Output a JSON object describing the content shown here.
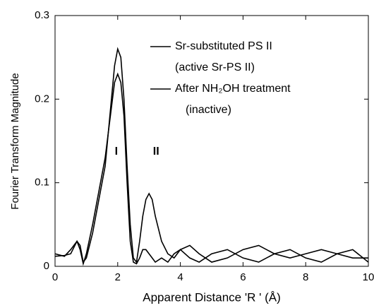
{
  "chart_data": {
    "type": "line",
    "xlabel": "Apparent Distance 'R ' (Å)",
    "ylabel": "Fourier Transform Magnitude",
    "x": [
      0,
      0.3,
      0.5,
      0.7,
      0.8,
      0.9,
      1.0,
      1.2,
      1.4,
      1.6,
      1.8,
      1.9,
      2.0,
      2.1,
      2.2,
      2.3,
      2.4,
      2.5,
      2.6,
      2.7,
      2.8,
      2.9,
      3.0,
      3.1,
      3.2,
      3.4,
      3.6,
      3.8,
      4.0,
      4.3,
      4.6,
      5.0,
      5.5,
      6.0,
      6.5,
      7.0,
      7.5,
      8.0,
      8.5,
      9.0,
      9.5,
      10
    ],
    "series": [
      {
        "name": "Sr-substituted PS II",
        "note": "(active Sr-PS II)",
        "color": "#000000",
        "values": [
          0.012,
          0.013,
          0.015,
          0.03,
          0.025,
          0.005,
          0.01,
          0.04,
          0.08,
          0.12,
          0.2,
          0.24,
          0.26,
          0.25,
          0.2,
          0.12,
          0.05,
          0.01,
          0.005,
          0.03,
          0.06,
          0.08,
          0.087,
          0.08,
          0.06,
          0.03,
          0.015,
          0.01,
          0.02,
          0.01,
          0.005,
          0.015,
          0.02,
          0.01,
          0.005,
          0.015,
          0.02,
          0.01,
          0.005,
          0.015,
          0.02,
          0.005
        ]
      },
      {
        "name": "After NH₂OH treatment",
        "note": "(inactive)",
        "color": "#000000",
        "values": [
          0.015,
          0.012,
          0.02,
          0.03,
          0.02,
          0.003,
          0.015,
          0.05,
          0.09,
          0.13,
          0.19,
          0.22,
          0.23,
          0.22,
          0.18,
          0.1,
          0.03,
          0.005,
          0.003,
          0.01,
          0.02,
          0.02,
          0.015,
          0.01,
          0.005,
          0.01,
          0.005,
          0.015,
          0.02,
          0.025,
          0.015,
          0.005,
          0.01,
          0.02,
          0.025,
          0.015,
          0.01,
          0.015,
          0.02,
          0.015,
          0.01,
          0.01
        ]
      }
    ],
    "annotations": [
      {
        "text": "I",
        "x": 2.0,
        "y": 0.12
      },
      {
        "text": "II",
        "x": 3.0,
        "y": 0.12
      }
    ],
    "xlim": [
      0,
      10
    ],
    "xticks": [
      0,
      2,
      4,
      6,
      8,
      10
    ],
    "ylim": [
      0,
      0.3
    ],
    "yticks": [
      0,
      0.1,
      0.2,
      0.3
    ]
  }
}
